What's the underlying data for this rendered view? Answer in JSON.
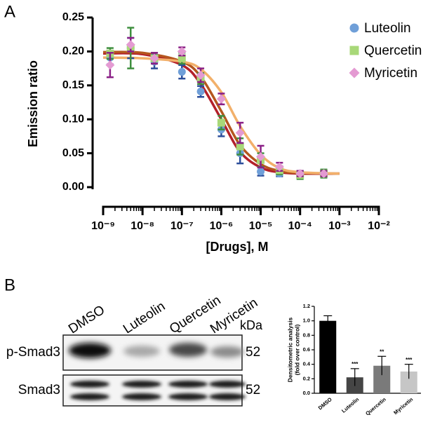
{
  "panel_labels": [
    "A",
    "B"
  ],
  "chart_data": [
    {
      "type": "dose_response",
      "x_label": "[Drugs], M",
      "y_label": "Emission ratio",
      "x_scale": "log",
      "xlim": [
        1e-09,
        0.01
      ],
      "xticks": [
        {
          "value": 1e-09,
          "label": "10⁻⁹"
        },
        {
          "value": 1e-08,
          "label": "10⁻⁸"
        },
        {
          "value": 1e-07,
          "label": "10⁻⁷"
        },
        {
          "value": 1e-06,
          "label": "10⁻⁶"
        },
        {
          "value": 1e-05,
          "label": "10⁻⁵"
        },
        {
          "value": 0.0001,
          "label": "10⁻⁴"
        },
        {
          "value": 0.001,
          "label": "10⁻³"
        },
        {
          "value": 0.01,
          "label": "10⁻²"
        }
      ],
      "ylim": [
        0,
        0.25
      ],
      "yticks": [
        {
          "value": 0,
          "label": "0.00"
        },
        {
          "value": 0.05,
          "label": "0.05"
        },
        {
          "value": 0.1,
          "label": "0.10"
        },
        {
          "value": 0.15,
          "label": "0.15"
        },
        {
          "value": 0.2,
          "label": "0.20"
        },
        {
          "value": 0.25,
          "label": "0.25"
        }
      ],
      "x": [
        1.5e-09,
        5e-09,
        2e-08,
        1e-07,
        3e-07,
        1e-06,
        3e-06,
        1e-05,
        3e-05,
        0.0001,
        0.0004
      ],
      "legend": "top-right",
      "series": [
        {
          "name": "Luteolin",
          "marker": "circle",
          "color": "#6f9fd8",
          "error_color": "#2b4d9a",
          "label_color": "#2b4d9a",
          "curve_color": "#b3202a",
          "values": [
            0.191,
            0.205,
            0.185,
            0.17,
            0.141,
            0.085,
            0.05,
            0.023,
            0.02,
            0.02,
            0.02
          ],
          "errors": [
            0.01,
            0.015,
            0.01,
            0.01,
            0.008,
            0.01,
            0.015,
            0.006,
            0.004,
            0.004,
            0.004
          ],
          "curve": {
            "x": [
              1e-09,
              1e-08,
              1e-07,
              3e-07,
              1e-06,
              3e-06,
              1e-05,
              3e-05,
              0.0001,
              0.001
            ],
            "values": [
              0.197,
              0.196,
              0.18,
              0.152,
              0.1,
              0.052,
              0.029,
              0.022,
              0.02,
              0.02
            ]
          }
        },
        {
          "name": "Quercetin",
          "marker": "square",
          "color": "#a8d878",
          "error_color": "#3f8f3f",
          "label_color": "#2f7f2f",
          "curve_color": "#b5561e",
          "values": [
            0.197,
            0.205,
            0.19,
            0.19,
            0.16,
            0.095,
            0.06,
            0.04,
            0.025,
            0.018,
            0.02
          ],
          "errors": [
            0.008,
            0.03,
            0.008,
            0.008,
            0.008,
            0.01,
            0.012,
            0.01,
            0.006,
            0.006,
            0.006
          ],
          "curve": {
            "x": [
              1e-09,
              1e-08,
              1e-07,
              3e-07,
              1e-06,
              3e-06,
              1e-05,
              3e-05,
              0.0001,
              0.001
            ],
            "values": [
              0.199,
              0.198,
              0.185,
              0.163,
              0.112,
              0.062,
              0.034,
              0.024,
              0.021,
              0.02
            ]
          }
        },
        {
          "name": "Myricetin",
          "marker": "diamond",
          "color": "#e49ad2",
          "error_color": "#8a1f86",
          "label_color": "#a0401e",
          "curve_color": "#f2b06a",
          "values": [
            0.18,
            0.21,
            0.19,
            0.2,
            0.165,
            0.13,
            0.08,
            0.045,
            0.03,
            0.02,
            0.02
          ],
          "errors": [
            0.018,
            0.01,
            0.008,
            0.006,
            0.01,
            0.008,
            0.015,
            0.016,
            0.006,
            0.004,
            0.004
          ],
          "curve": {
            "x": [
              1e-09,
              1e-08,
              1e-07,
              3e-07,
              1e-06,
              3e-06,
              1e-05,
              3e-05,
              0.0001,
              0.001
            ],
            "values": [
              0.191,
              0.19,
              0.185,
              0.174,
              0.14,
              0.09,
              0.048,
              0.028,
              0.022,
              0.02
            ]
          }
        }
      ]
    },
    {
      "type": "bar",
      "y_label": [
        "Densitometric analysis",
        "(fold over control)"
      ],
      "categories": [
        "DMSO",
        "Luteolin",
        "Quercetin",
        "Myricetin"
      ],
      "values": [
        1.0,
        0.22,
        0.38,
        0.3
      ],
      "errors": [
        0.07,
        0.12,
        0.13,
        0.1
      ],
      "colors": [
        "#000000",
        "#454545",
        "#7a7a7a",
        "#c6c6c6"
      ],
      "significance": [
        null,
        "***",
        "**",
        "***"
      ],
      "ylim": [
        0,
        1.2
      ],
      "yticks": [
        {
          "value": 0,
          "label": "0.0"
        },
        {
          "value": 0.2,
          "label": "0.2"
        },
        {
          "value": 0.4,
          "label": "0.4"
        },
        {
          "value": 0.6,
          "label": "0.6"
        },
        {
          "value": 0.8,
          "label": "0.8"
        },
        {
          "value": 1.0,
          "label": "1.0"
        },
        {
          "value": 1.2,
          "label": "1.2"
        }
      ]
    }
  ],
  "blot": {
    "lanes": [
      "DMSO",
      "Luteolin",
      "Quercetin",
      "Myricetin"
    ],
    "unit": "kDa",
    "rows": [
      {
        "label": "p-Smad3",
        "kda": 52
      },
      {
        "label": "Smad3",
        "kda": 52
      }
    ]
  }
}
